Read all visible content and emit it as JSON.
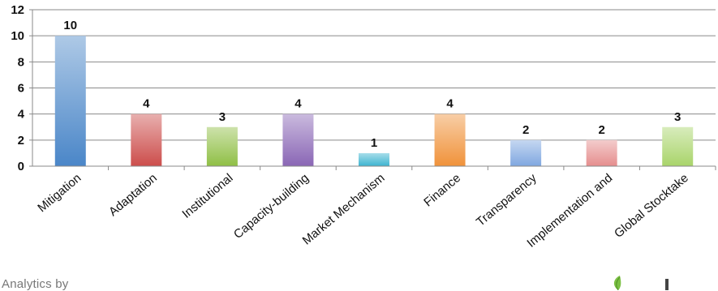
{
  "chart_data": {
    "type": "bar",
    "categories": [
      "Mitigation",
      "Adaptation",
      "Institutional",
      "Capacity-building",
      "Market Mechanism",
      "Finance",
      "Transparency",
      "Implementation and",
      "Global Stocktake"
    ],
    "values": [
      10,
      4,
      3,
      4,
      1,
      4,
      2,
      2,
      3
    ],
    "title": "",
    "xlabel": "",
    "ylabel": "",
    "ylim": [
      0,
      12
    ],
    "yticks": [
      0,
      2,
      4,
      6,
      8,
      10,
      12
    ],
    "grid": true,
    "legend": "none",
    "colors": [
      "#4a86c8",
      "#cc4d4b",
      "#8fbf45",
      "#8a66b5",
      "#3cb4d0",
      "#f0923a",
      "#7fa7e0",
      "#e58d8d",
      "#a9d46a"
    ]
  },
  "footer": {
    "text": "Analytics by"
  },
  "logo": {
    "icon": "leaf-logo-icon"
  }
}
